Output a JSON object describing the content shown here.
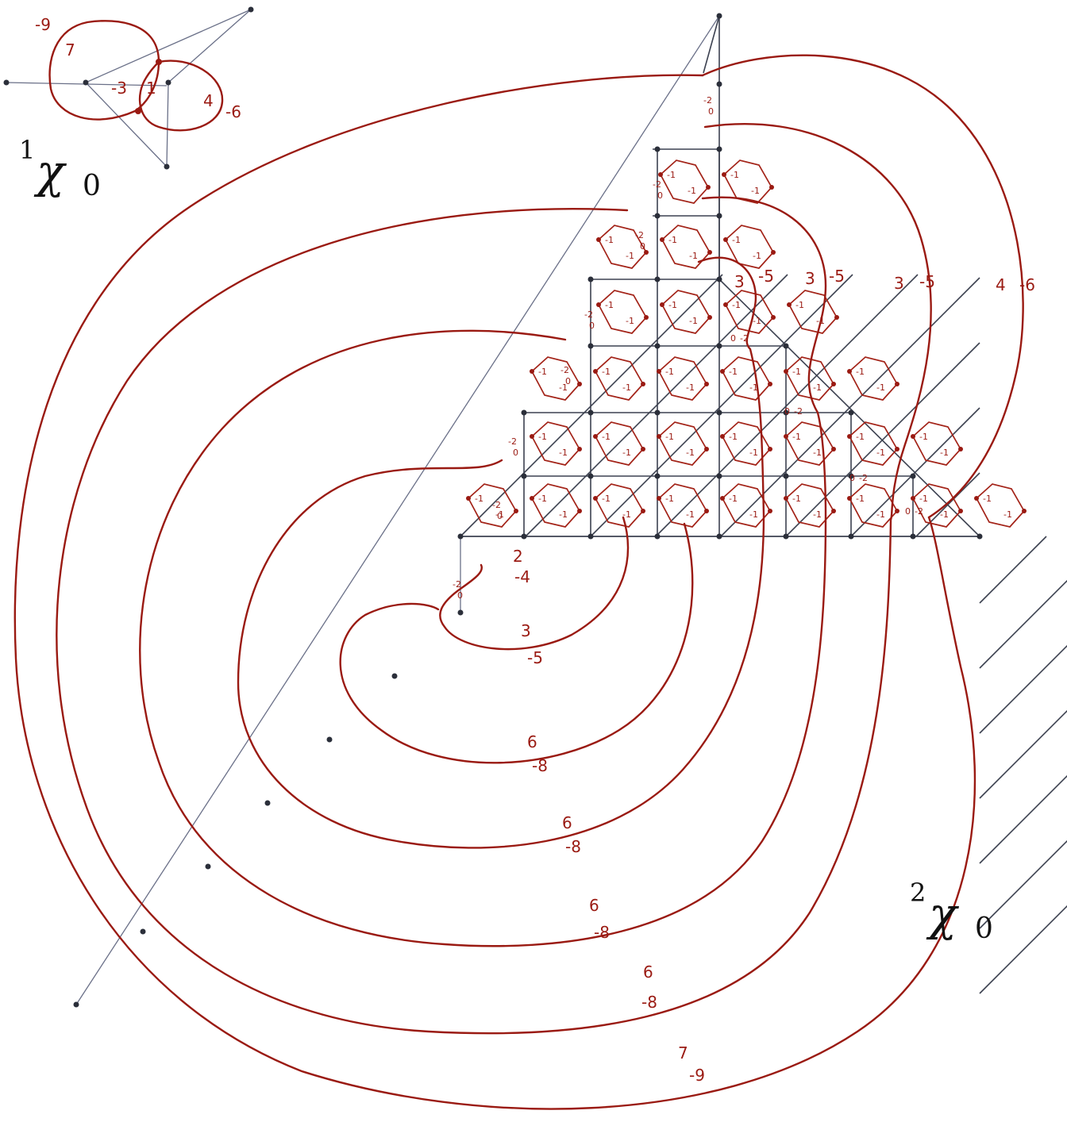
{
  "small_diagram": {
    "symbol": "χ",
    "superscript": "1",
    "subscript": "0",
    "labels": {
      "top": "-9",
      "left": "7",
      "center": "-3",
      "center_b": "1",
      "right": "4",
      "right_b": "-6"
    }
  },
  "large_diagram": {
    "symbol": "χ",
    "superscript": "2",
    "subscript": "0",
    "right_labels": [
      {
        "a": "3",
        "b": "-5"
      },
      {
        "a": "3",
        "b": "-5"
      },
      {
        "a": "3",
        "b": "-5"
      },
      {
        "a": "4",
        "b": "-6"
      }
    ],
    "lower_labels": [
      {
        "a": "2",
        "b": "-4"
      },
      {
        "a": "3",
        "b": "-5"
      },
      {
        "a": "6",
        "b": "-8"
      },
      {
        "a": "6",
        "b": "-8"
      },
      {
        "a": "6",
        "b": "-8"
      },
      {
        "a": "6",
        "b": "-8"
      },
      {
        "a": "7",
        "b": "-9"
      }
    ],
    "cell_values": {
      "a": "-1",
      "b": "-2",
      "c": "0"
    }
  },
  "colors": {
    "curve": "#9a1a12",
    "grid": "#3c4150"
  }
}
